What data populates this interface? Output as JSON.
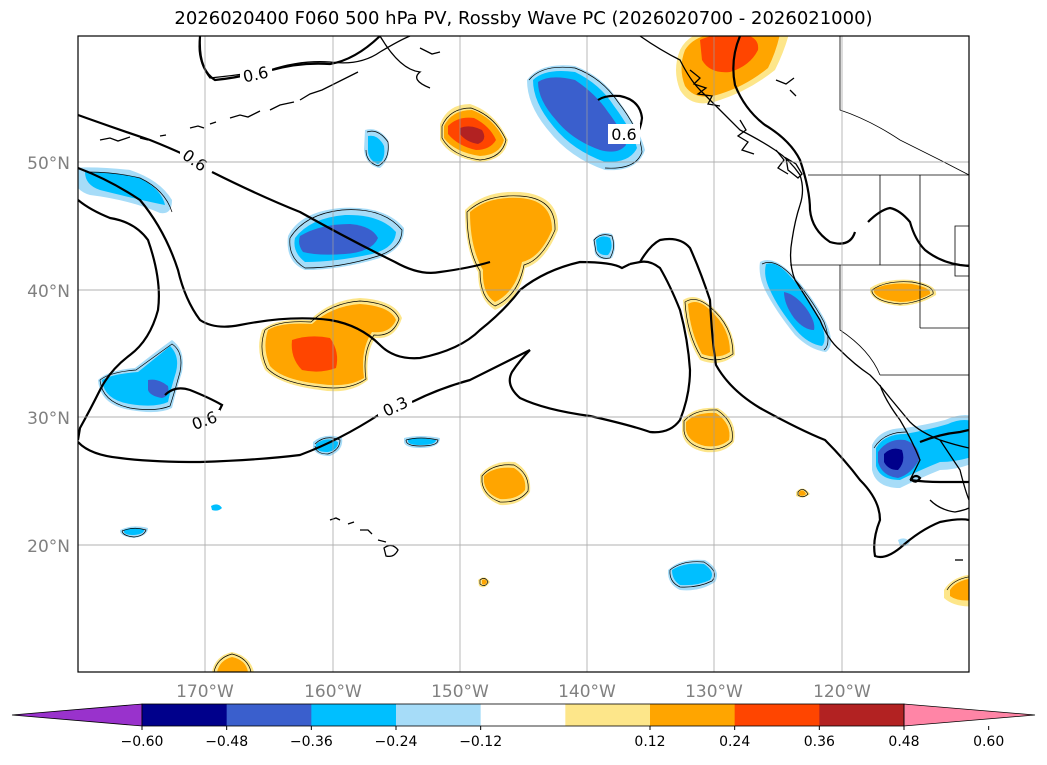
{
  "title": "2026020400 F060 500 hPa PV, Rossby Wave PC (2026020700 - 2026021000)",
  "lat_labels": [
    "50°N",
    "40°N",
    "30°N",
    "20°N"
  ],
  "lon_labels": [
    "170°W",
    "160°W",
    "150°W",
    "140°W",
    "130°W",
    "120°W"
  ],
  "colorbar": {
    "ticks": [
      "−0.60",
      "−0.48",
      "−0.36",
      "−0.24",
      "−0.12",
      "0.12",
      "0.24",
      "0.36",
      "0.48",
      "0.60"
    ],
    "colors": [
      "#9932cc",
      "#00008b",
      "#3a5fcd",
      "#00bfff",
      "#a6dcf8",
      "#ffffff",
      "#fde68a",
      "#ffa500",
      "#ff4500",
      "#b22222",
      "#ff85a6"
    ]
  },
  "contour_labels": [
    "0.6",
    "0.6",
    "0.6",
    "0.3",
    "0.6"
  ],
  "colors": {
    "light_blue": "#a6dcf8",
    "sky_blue": "#00bfff",
    "royal_blue": "#3a5fcd",
    "navy": "#00008b",
    "light_yellow": "#fde68a",
    "orange": "#ffa500",
    "orange_red": "#ff4500",
    "dark_red": "#b22222"
  }
}
